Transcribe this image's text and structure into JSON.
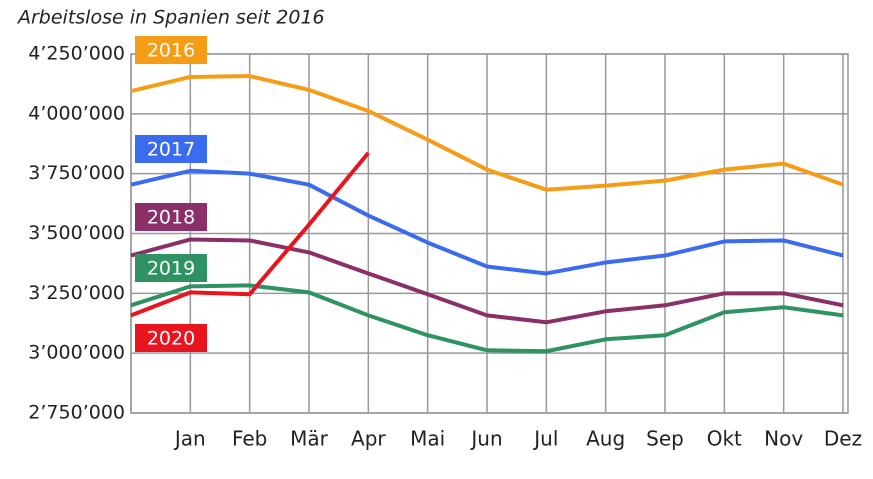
{
  "chart_data": {
    "type": "line",
    "title": "Arbeitslose in Spanien seit 2016",
    "categories": [
      null,
      "Jan",
      "Feb",
      "Mär",
      "Apr",
      "Mai",
      "Jun",
      "Jul",
      "Aug",
      "Sep",
      "Okt",
      "Nov",
      "Dez"
    ],
    "series": [
      {
        "name": "2016",
        "color": "#f59d16",
        "values": [
          4095000,
          4154000,
          4158000,
          4100000,
          4012000,
          3892000,
          3767000,
          3683000,
          3700000,
          3721000,
          3767000,
          3792000,
          3704000
        ]
      },
      {
        "name": "2017",
        "color": "#3b6cf0",
        "values": [
          3704000,
          3762000,
          3750000,
          3704000,
          3575000,
          3462000,
          3362000,
          3333000,
          3379000,
          3408000,
          3467000,
          3471000,
          3408000
        ]
      },
      {
        "name": "2018",
        "color": "#8a2f68",
        "values": [
          3408000,
          3475000,
          3471000,
          3421000,
          3333000,
          3246000,
          3158000,
          3129000,
          3175000,
          3200000,
          3250000,
          3250000,
          3200000
        ]
      },
      {
        "name": "2019",
        "color": "#2f9262",
        "values": [
          3200000,
          3279000,
          3283000,
          3254000,
          3158000,
          3075000,
          3012000,
          3008000,
          3058000,
          3075000,
          3171000,
          3192000,
          3158000
        ]
      },
      {
        "name": "2020",
        "color": "#e8141e",
        "values": [
          3158000,
          3254000,
          3246000,
          3537000,
          3837000,
          null,
          null,
          null,
          null,
          null,
          null,
          null,
          null
        ]
      }
    ],
    "ylim": [
      2750000,
      4250000
    ],
    "yticks": [
      {
        "value": 2750000,
        "label": "2’750’000"
      },
      {
        "value": 3000000,
        "label": "3’000’000"
      },
      {
        "value": 3250000,
        "label": "3’250’000"
      },
      {
        "value": 3500000,
        "label": "3’500’000"
      },
      {
        "value": 3750000,
        "label": "3’750’000"
      },
      {
        "value": 4000000,
        "label": "4’000’000"
      },
      {
        "value": 4250000,
        "label": "4’250’000"
      }
    ],
    "grid": true
  }
}
